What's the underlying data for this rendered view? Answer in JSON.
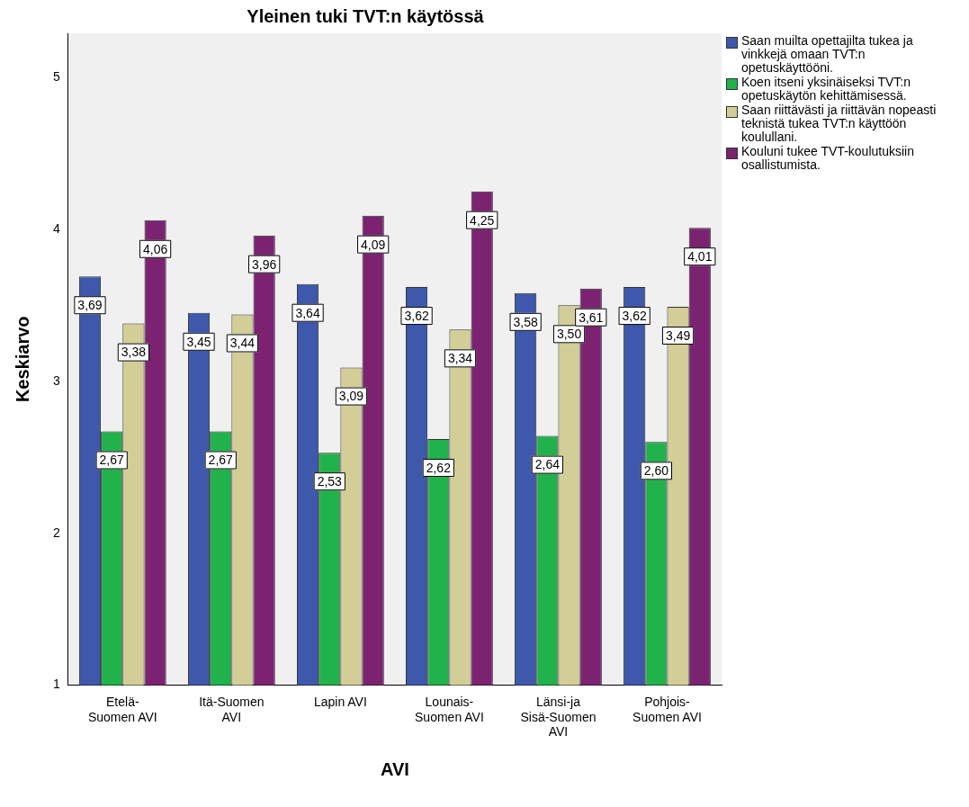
{
  "chart_data": {
    "type": "bar",
    "title": "Yleinen tuki TVT:n käytössä",
    "xlabel": "AVI",
    "ylabel": "Keskiarvo",
    "categories": [
      "Etelä-Suomen AVI",
      "Itä-Suomen AVI",
      "Lapin AVI",
      "Lounais-Suomen AVI",
      "Länsi-ja Sisä-Suomen AVI",
      "Pohjois-Suomen AVI"
    ],
    "series": [
      {
        "name": "Saan muilta opettajilta tukea ja vinkkejä omaan TVT:n opetuskäyttööni.",
        "color": "#3e58ac",
        "values": [
          3.69,
          3.45,
          3.64,
          3.62,
          3.58,
          3.62
        ],
        "value_labels": [
          "3,69",
          "3,45",
          "3,64",
          "3,62",
          "3,58",
          "3,62"
        ]
      },
      {
        "name": "Koen itseni yksinäiseksi TVT:n opetuskäytön kehittämisessä.",
        "color": "#21b24b",
        "values": [
          2.67,
          2.67,
          2.53,
          2.62,
          2.64,
          2.6
        ],
        "value_labels": [
          "2,67",
          "2,67",
          "2,53",
          "2,62",
          "2,64",
          "2,60"
        ]
      },
      {
        "name": "Saan riittävästi ja riittävän nopeasti teknistä tukea TVT:n käyttöön koulullani.",
        "color": "#d3ce97",
        "values": [
          3.38,
          3.44,
          3.09,
          3.34,
          3.5,
          3.49
        ],
        "value_labels": [
          "3,38",
          "3,44",
          "3,09",
          "3,34",
          "3,50",
          "3,49"
        ]
      },
      {
        "name": "Kouluni tukee TVT-koulutuksiin osallistumista.",
        "color": "#7b2370",
        "values": [
          4.06,
          3.96,
          4.09,
          4.25,
          3.61,
          4.01
        ],
        "value_labels": [
          "4,06",
          "3,96",
          "4,09",
          "4,25",
          "3,61",
          "4,01"
        ]
      }
    ],
    "ylim": [
      1,
      5.29
    ],
    "yticks": [
      1,
      2,
      3,
      4,
      5
    ],
    "legend": "right"
  }
}
